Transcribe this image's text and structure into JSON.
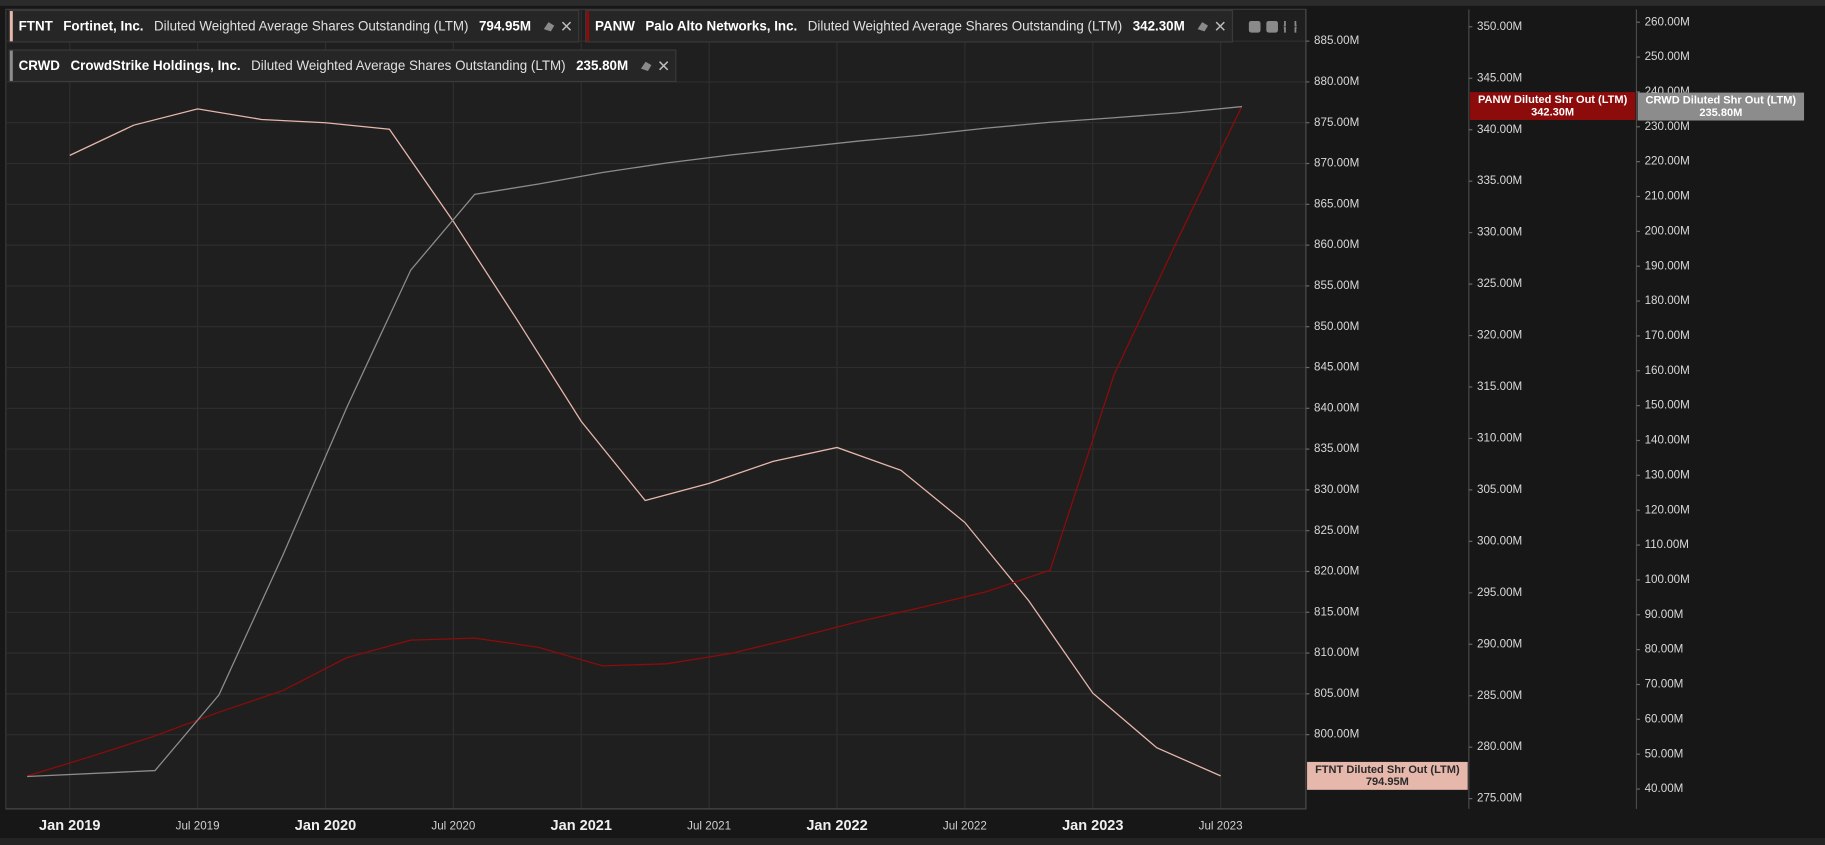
{
  "chart_data": {
    "type": "line",
    "xlim": [
      "2018-10",
      "2023-11"
    ],
    "xticks": [
      {
        "value": "2019-01",
        "label": "Jan 2019"
      },
      {
        "value": "2019-07",
        "label": "Jul 2019"
      },
      {
        "value": "2020-01",
        "label": "Jan 2020"
      },
      {
        "value": "2020-07",
        "label": "Jul 2020"
      },
      {
        "value": "2021-01",
        "label": "Jan 2021"
      },
      {
        "value": "2021-07",
        "label": "Jul 2021"
      },
      {
        "value": "2022-01",
        "label": "Jan 2022"
      },
      {
        "value": "2022-07",
        "label": "Jul 2022"
      },
      {
        "value": "2023-01",
        "label": "Jan 2023"
      },
      {
        "value": "2023-07",
        "label": "Jul 2023"
      }
    ],
    "ylim": [
      790.9,
      888.9
    ],
    "yticks": [
      {
        "value": 800,
        "label": "800.00M"
      },
      {
        "value": 805,
        "label": "805.00M"
      },
      {
        "value": 810,
        "label": "810.00M"
      },
      {
        "value": 815,
        "label": "815.00M"
      },
      {
        "value": 820,
        "label": "820.00M"
      },
      {
        "value": 825,
        "label": "825.00M"
      },
      {
        "value": 830,
        "label": "830.00M"
      },
      {
        "value": 835,
        "label": "835.00M"
      },
      {
        "value": 840,
        "label": "840.00M"
      },
      {
        "value": 845,
        "label": "845.00M"
      },
      {
        "value": 850,
        "label": "850.00M"
      },
      {
        "value": 855,
        "label": "855.00M"
      },
      {
        "value": 860,
        "label": "860.00M"
      },
      {
        "value": 865,
        "label": "865.00M"
      },
      {
        "value": 870,
        "label": "870.00M"
      },
      {
        "value": 875,
        "label": "875.00M"
      },
      {
        "value": 880,
        "label": "880.00M"
      },
      {
        "value": 885,
        "label": "885.00M"
      }
    ],
    "y2lim": [
      274.0,
      351.7
    ],
    "y2ticks": [
      {
        "value": 275,
        "label": "275.00M"
      },
      {
        "value": 280,
        "label": "280.00M"
      },
      {
        "value": 285,
        "label": "285.00M"
      },
      {
        "value": 290,
        "label": "290.00M"
      },
      {
        "value": 295,
        "label": "295.00M"
      },
      {
        "value": 300,
        "label": "300.00M"
      },
      {
        "value": 305,
        "label": "305.00M"
      },
      {
        "value": 310,
        "label": "310.00M"
      },
      {
        "value": 315,
        "label": "315.00M"
      },
      {
        "value": 320,
        "label": "320.00M"
      },
      {
        "value": 325,
        "label": "325.00M"
      },
      {
        "value": 330,
        "label": "330.00M"
      },
      {
        "value": 335,
        "label": "335.00M"
      },
      {
        "value": 340,
        "label": "340.00M"
      },
      {
        "value": 345,
        "label": "345.00M"
      },
      {
        "value": 350,
        "label": "350.00M"
      }
    ],
    "y3lim": [
      34.3,
      263.7
    ],
    "y3ticks": [
      {
        "value": 40,
        "label": "40.00M"
      },
      {
        "value": 50,
        "label": "50.00M"
      },
      {
        "value": 60,
        "label": "60.00M"
      },
      {
        "value": 70,
        "label": "70.00M"
      },
      {
        "value": 80,
        "label": "80.00M"
      },
      {
        "value": 90,
        "label": "90.00M"
      },
      {
        "value": 100,
        "label": "100.00M"
      },
      {
        "value": 110,
        "label": "110.00M"
      },
      {
        "value": 120,
        "label": "120.00M"
      },
      {
        "value": 130,
        "label": "130.00M"
      },
      {
        "value": 140,
        "label": "140.00M"
      },
      {
        "value": 150,
        "label": "150.00M"
      },
      {
        "value": 160,
        "label": "160.00M"
      },
      {
        "value": 170,
        "label": "170.00M"
      },
      {
        "value": 180,
        "label": "180.00M"
      },
      {
        "value": 190,
        "label": "190.00M"
      },
      {
        "value": 200,
        "label": "200.00M"
      },
      {
        "value": 210,
        "label": "210.00M"
      },
      {
        "value": 220,
        "label": "220.00M"
      },
      {
        "value": 230,
        "label": "230.00M"
      },
      {
        "value": 240,
        "label": "240.00M"
      },
      {
        "value": 250,
        "label": "250.00M"
      },
      {
        "value": 260,
        "label": "260.00M"
      }
    ],
    "grid": true,
    "series": [
      {
        "name": "FTNT",
        "company": "Fortinet, Inc.",
        "metric": "Diluted Weighted Average Shares Outstanding (LTM)",
        "last_label": "794.95M",
        "tag": "FTNT Diluted Shr Out (LTM)",
        "color": "#e6b7ab",
        "axis": "y",
        "x": [
          "2019-01",
          "2019-04",
          "2019-07",
          "2019-10",
          "2020-01",
          "2020-04",
          "2020-07",
          "2020-10",
          "2021-01",
          "2021-04",
          "2021-07",
          "2021-10",
          "2022-01",
          "2022-04",
          "2022-07",
          "2022-10",
          "2023-01",
          "2023-04",
          "2023-07"
        ],
        "values": [
          871.0,
          874.7,
          876.7,
          875.4,
          875.0,
          874.2,
          862.9,
          850.8,
          838.4,
          828.7,
          830.8,
          833.5,
          835.2,
          832.4,
          826.0,
          816.4,
          805.1,
          798.4,
          794.95
        ]
      },
      {
        "name": "PANW",
        "company": "Palo Alto Networks, Inc.",
        "metric": "Diluted Weighted Average Shares Outstanding (LTM)",
        "last_label": "342.30M",
        "tag": "PANW Diluted Shr Out (LTM)",
        "color": "#8c0b0b",
        "axis": "y2",
        "x": [
          "2018-11",
          "2019-02",
          "2019-05",
          "2019-08",
          "2019-11",
          "2020-02",
          "2020-05",
          "2020-08",
          "2020-11",
          "2021-02",
          "2021-05",
          "2021-08",
          "2021-11",
          "2022-02",
          "2022-05",
          "2022-08",
          "2022-11",
          "2023-02",
          "2023-05",
          "2023-08"
        ],
        "values": [
          277.2,
          279.1,
          281.1,
          283.4,
          285.5,
          288.7,
          290.4,
          290.6,
          289.7,
          287.9,
          288.1,
          289.1,
          290.6,
          292.2,
          293.6,
          295.1,
          297.2,
          316.2,
          329.4,
          342.3
        ]
      },
      {
        "name": "CRWD",
        "company": "CrowdStrike Holdings, Inc.",
        "metric": "Diluted Weighted Average Shares Outstanding (LTM)",
        "last_label": "235.80M",
        "tag": "CRWD Diluted Shr Out (LTM)",
        "color": "#8c8c8c",
        "axis": "y3",
        "x": [
          "2018-11",
          "2019-05",
          "2019-08",
          "2019-11",
          "2020-02",
          "2020-05",
          "2020-08",
          "2020-11",
          "2021-02",
          "2021-05",
          "2021-08",
          "2021-11",
          "2022-02",
          "2022-05",
          "2022-08",
          "2022-11",
          "2023-02",
          "2023-05",
          "2023-08"
        ],
        "values": [
          43.6,
          45.3,
          67.0,
          107.1,
          149.5,
          188.9,
          210.6,
          213.6,
          216.9,
          219.6,
          221.9,
          223.9,
          225.9,
          227.6,
          229.6,
          231.3,
          232.6,
          234.0,
          235.8
        ]
      }
    ]
  }
}
